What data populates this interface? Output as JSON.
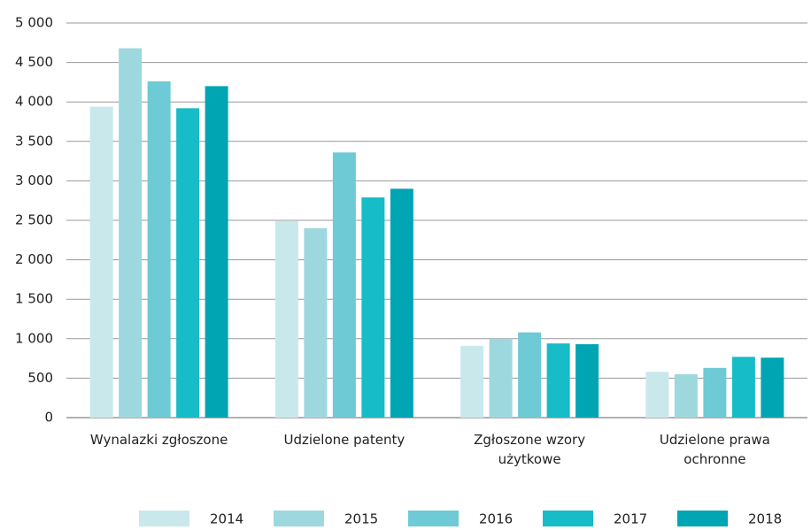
{
  "chart_data": {
    "type": "bar",
    "categories": [
      "Wynalazki zgłoszone",
      "Udzielone patenty",
      "Zgłoszone wzory użytkowe",
      "Udzielone prawa ochronne"
    ],
    "series": [
      {
        "name": "2014",
        "color": "#c9e8ec",
        "values": [
          3940,
          2490,
          910,
          580
        ]
      },
      {
        "name": "2015",
        "color": "#9dd8de",
        "values": [
          4680,
          2400,
          1000,
          550
        ]
      },
      {
        "name": "2016",
        "color": "#6ecad4",
        "values": [
          4260,
          3360,
          1080,
          630
        ]
      },
      {
        "name": "2017",
        "color": "#16bcc7",
        "values": [
          3920,
          2790,
          940,
          770
        ]
      },
      {
        "name": "2018",
        "color": "#00a5b3",
        "values": [
          4200,
          2900,
          930,
          760
        ]
      }
    ],
    "ylim": [
      0,
      5000
    ],
    "yticks": [
      0,
      500,
      {
        "value": 1000,
        "label": "1 000"
      },
      {
        "value": 1500,
        "label": "1 500"
      },
      {
        "value": 2000,
        "label": "2 000"
      },
      {
        "value": 2500,
        "label": "2 500"
      },
      {
        "value": 3000,
        "label": "3 000"
      },
      {
        "value": 3500,
        "label": "3 500"
      },
      {
        "value": 4000,
        "label": "4 000"
      },
      {
        "value": 4500,
        "label": "4 500"
      },
      {
        "value": 5000,
        "label": "5 000"
      }
    ],
    "grid": true,
    "legend": "bottom"
  }
}
